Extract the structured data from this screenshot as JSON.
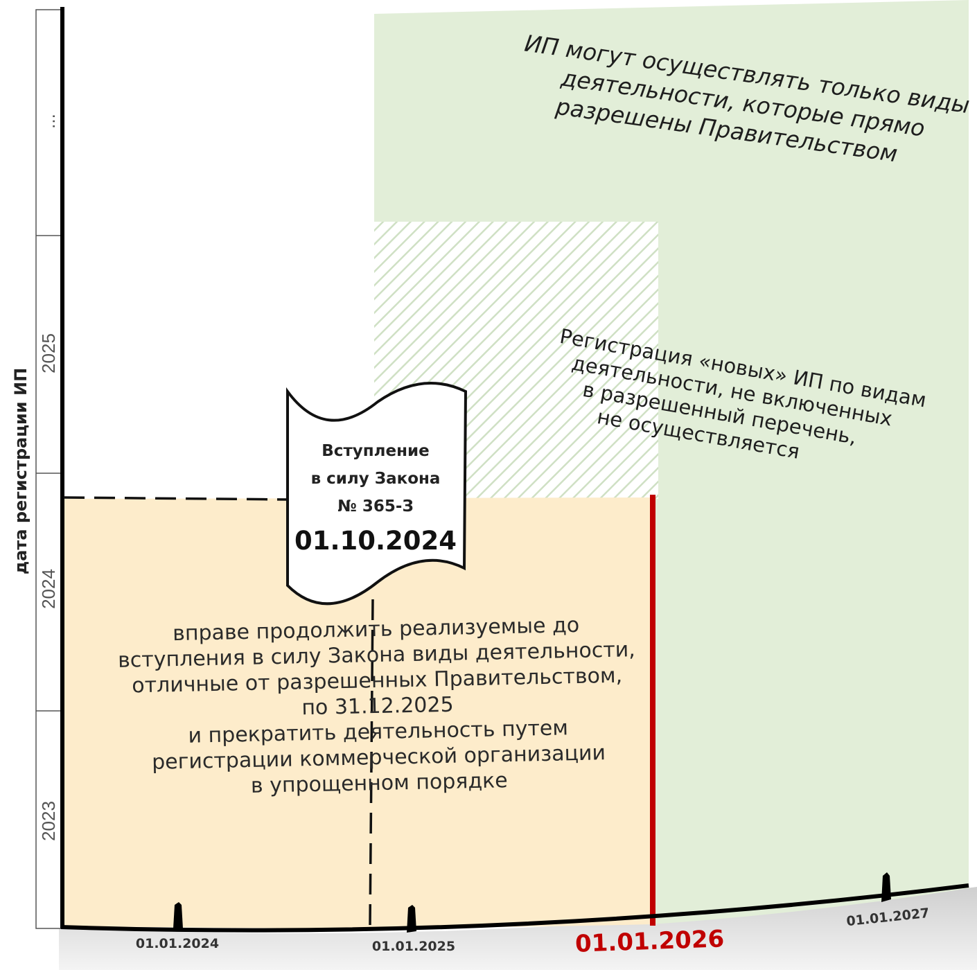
{
  "y_axis": {
    "title": "дата регистрации ИП",
    "ticks": [
      "2023",
      "2024",
      "2025",
      "..."
    ]
  },
  "x_axis": {
    "ticks": [
      "01.01.2024",
      "01.01.2025",
      "01.01.2026",
      "01.01.2027"
    ],
    "key_date": "01.01.2026"
  },
  "scroll": {
    "line1": "Вступление",
    "line2": "в силу Закона",
    "line3": "№ 365-З",
    "date": "01.10.2024"
  },
  "green_zone": {
    "lines": [
      "ИП могут осуществлять только виды",
      "деятельности, которые прямо",
      "разрешены Правительством"
    ]
  },
  "registration_note": {
    "lines": [
      "Регистрация «новых» ИП по видам",
      "деятельности, не включенных",
      "в разрешенный перечень,",
      "не осуществляется"
    ]
  },
  "yellow_zone": {
    "lines": [
      "вправе продолжить реализуемые до",
      "вступления в силу Закона виды деятельности,",
      "отличные от разрешенных Правительством,",
      "по 31.12.2025",
      "и прекратить деятельность путем",
      "регистрации коммерческой организации",
      "в упрощенном порядке"
    ]
  },
  "colors": {
    "green_fill": "#e2eed8",
    "yellow_fill": "#fdeccb",
    "red_line": "#c00000",
    "axis": "#000000"
  }
}
